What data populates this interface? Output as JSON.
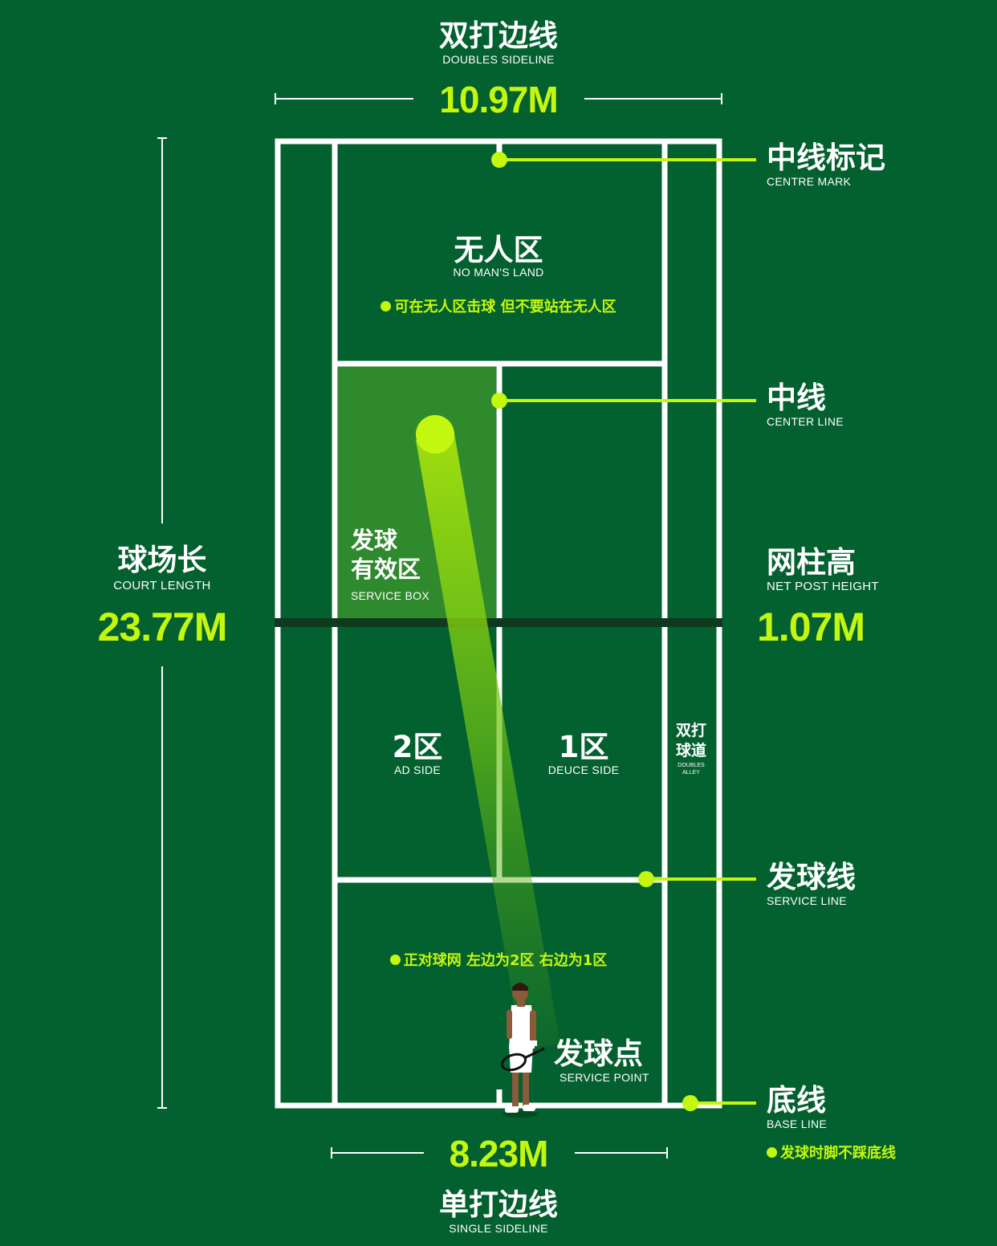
{
  "colors": {
    "background": "#03602f",
    "court_line": "#ffffff",
    "accent": "#c4f70f",
    "service_box_fill": "#2f8a2d",
    "net": "#0f3a1f"
  },
  "top": {
    "cn": "双打边线",
    "en": "DOUBLES SIDELINE",
    "measure": "10.97M"
  },
  "bottom": {
    "measure": "8.23M",
    "cn": "单打边线",
    "en": "SINGLE SIDELINE"
  },
  "court_length": {
    "cn": "球场长",
    "en": "COURT LENGTH",
    "measure": "23.77M"
  },
  "net_post": {
    "cn": "网柱高",
    "en": "NET POST HEIGHT",
    "measure": "1.07M"
  },
  "callouts": {
    "centre_mark": {
      "cn": "中线标记",
      "en": "CENTRE MARK"
    },
    "center_line": {
      "cn": "中线",
      "en": "CENTER LINE"
    },
    "service_line": {
      "cn": "发球线",
      "en": "SERVICE LINE"
    },
    "base_line": {
      "cn": "底线",
      "en": "BASE LINE",
      "note": "发球时脚不踩底线"
    }
  },
  "zones": {
    "no_mans_land": {
      "cn": "无人区",
      "en": "NO MAN'S LAND",
      "note": "可在无人区击球 但不要站在无人区"
    },
    "service_box": {
      "cn_line1": "发球",
      "cn_line2": "有效区",
      "en": "SERVICE BOX"
    },
    "ad_side": {
      "cn": "2区",
      "en": "AD SIDE"
    },
    "deuce_side": {
      "cn": "1区",
      "en": "DEUCE SIDE"
    },
    "doubles_alley": {
      "cn_line1": "双打",
      "cn_line2": "球道",
      "en_line1": "DOUBLES",
      "en_line2": "ALLEY"
    },
    "court_note": "正对球网 左边为2区 右边为1区",
    "service_point": {
      "cn": "发球点",
      "en": "SERVICE POINT"
    }
  },
  "icons": {
    "bullet": "tennis-ball-icon",
    "player": "tennis-player-figure"
  }
}
